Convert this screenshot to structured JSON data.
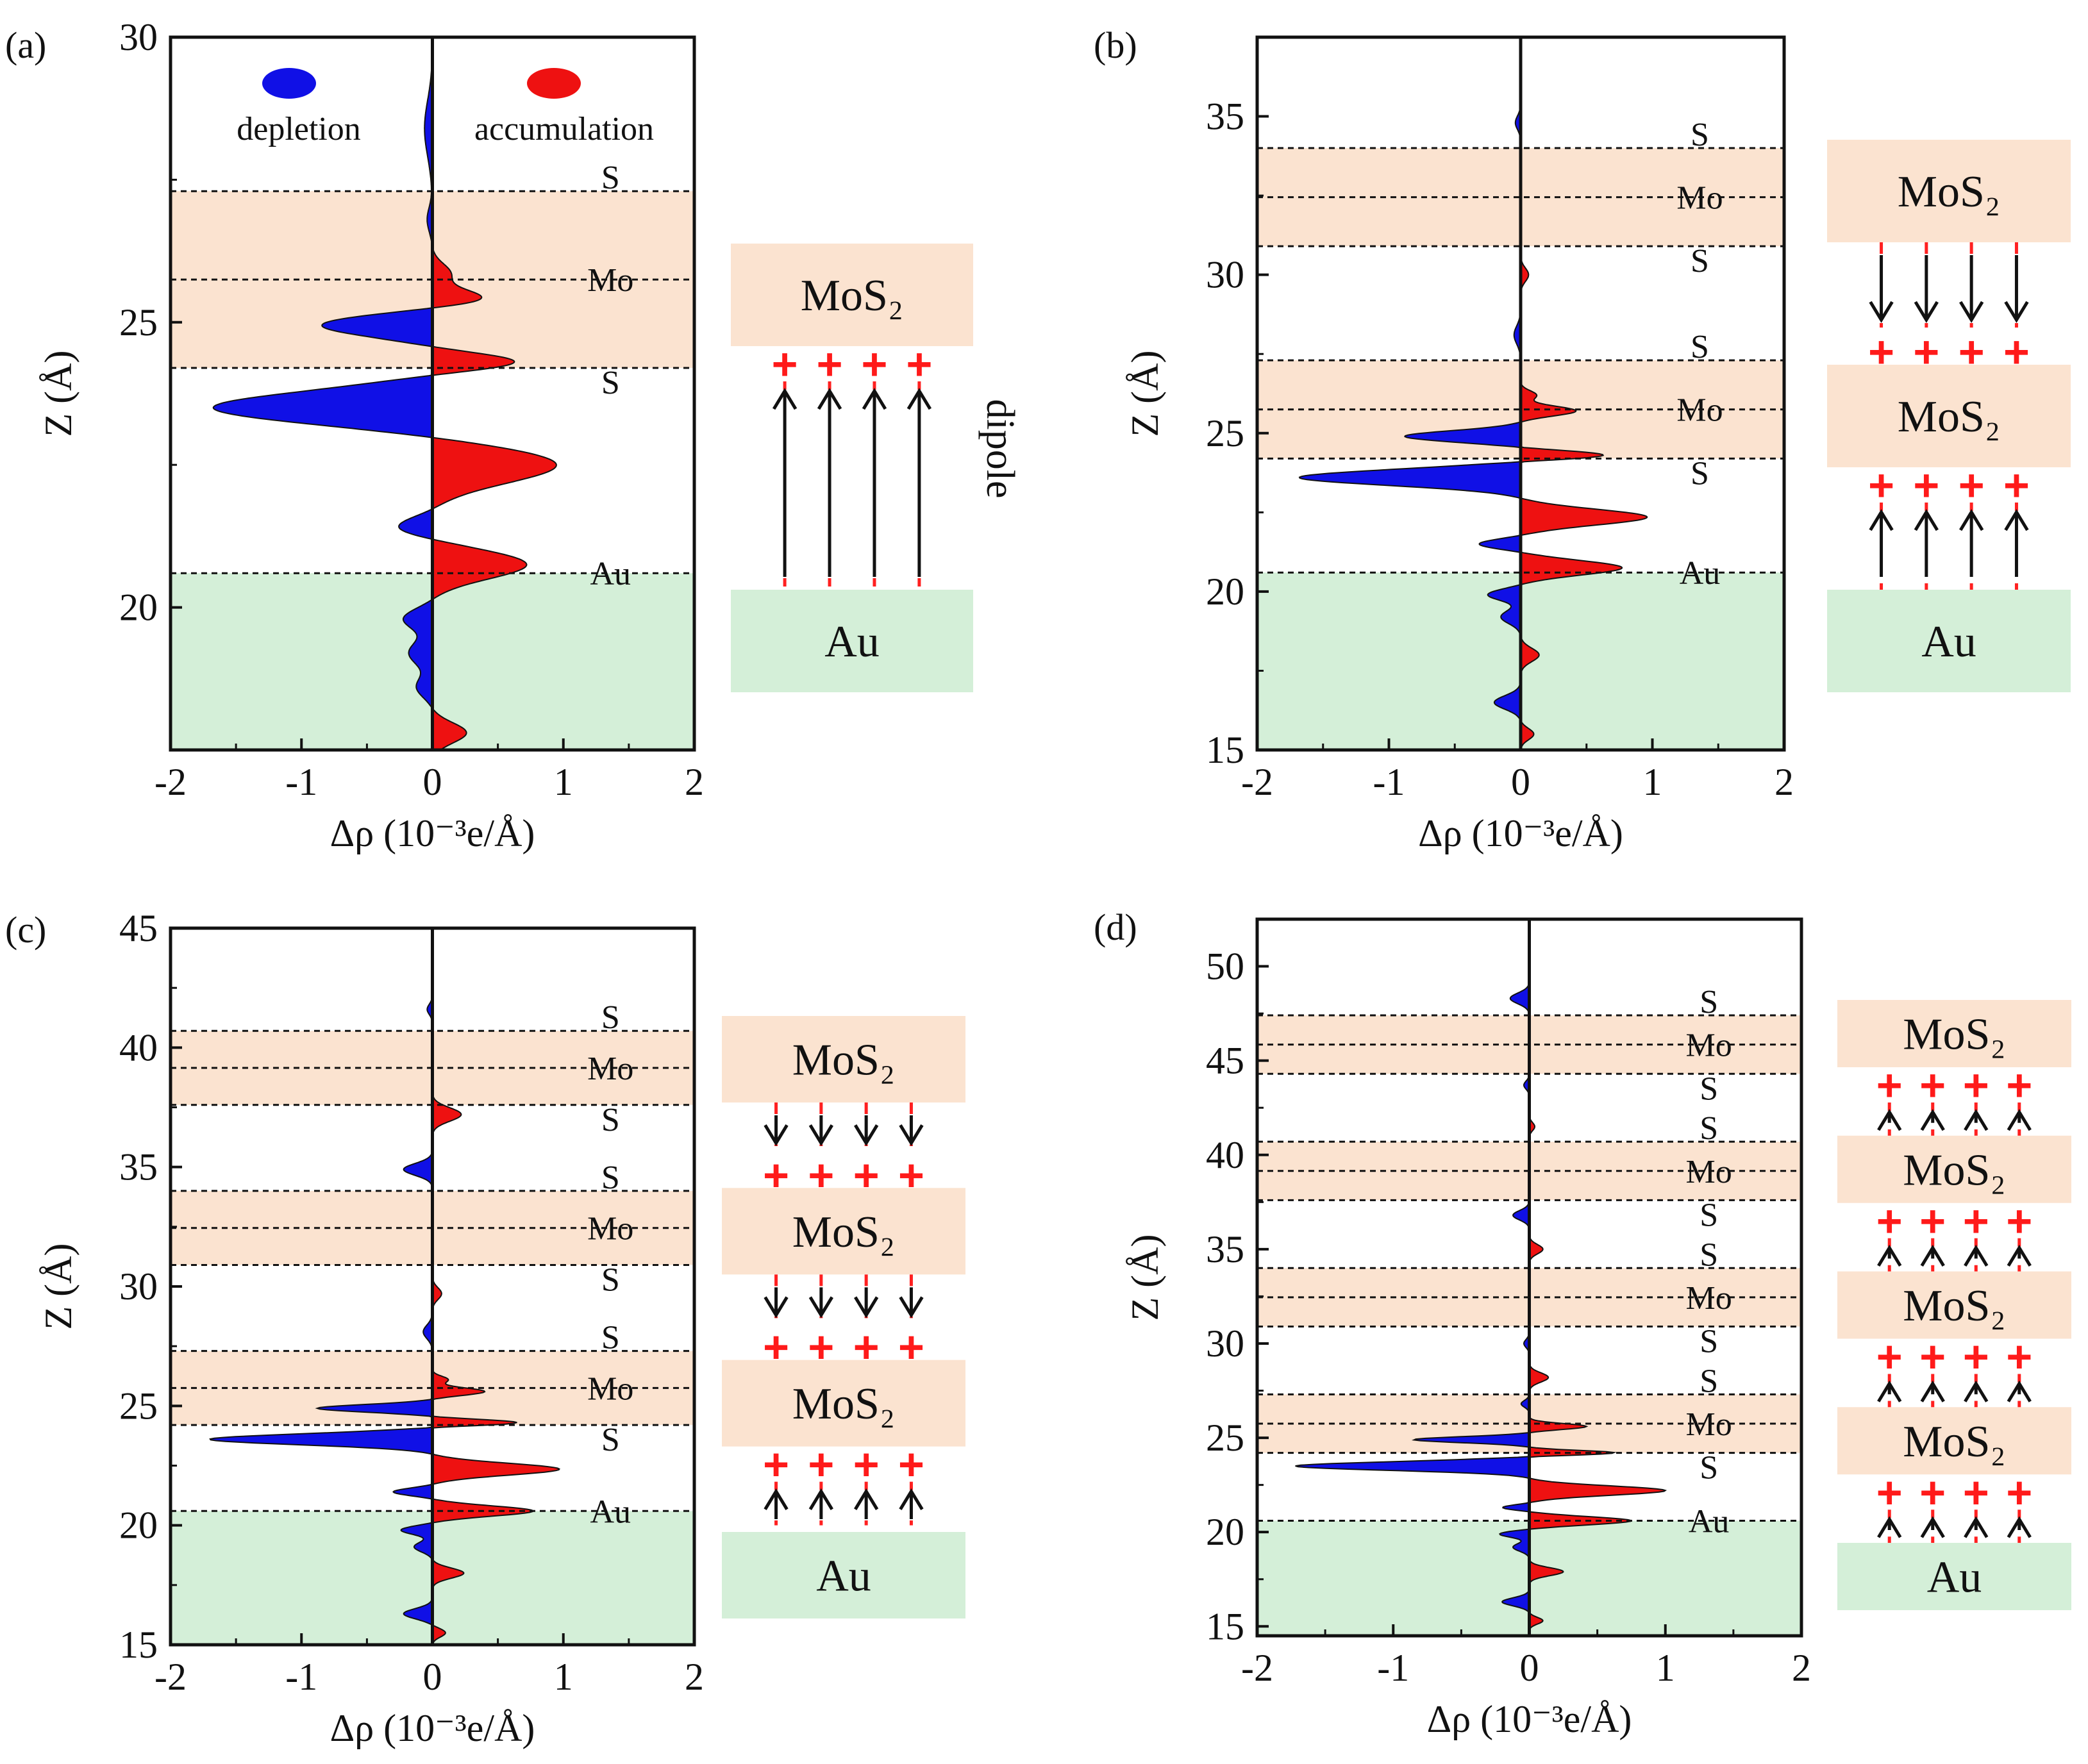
{
  "colors": {
    "depletion": "#1010e6",
    "accumulation": "#ee1111",
    "mos2_band": "#fbe3d0",
    "au_band": "#d4efd8",
    "dipole_dash": "#ff2020"
  },
  "legend": {
    "depletion": "depletion",
    "accumulation": "accumulation"
  },
  "dipole_label": "dipole",
  "box_labels": {
    "mos2": "MoS₂",
    "au": "Au"
  },
  "chart_data": [
    {
      "type": "area",
      "panel_label": "(a)",
      "xlabel": "Δρ (10⁻³e/Å)",
      "ylabel": "Z (Å)",
      "xlim": [
        -2,
        2
      ],
      "ylim": [
        17.5,
        30
      ],
      "xticks": [
        -2,
        -1,
        0,
        1,
        2
      ],
      "yticks": [
        20,
        25,
        30
      ],
      "ytick_labels": [
        "20",
        "25",
        "30"
      ],
      "bands": [
        {
          "type": "mos2",
          "z0": 24.2,
          "z1": 27.3
        }
      ],
      "au_top": 20.6,
      "dashed_lines": [
        {
          "z": 27.3,
          "label": "S"
        },
        {
          "z": 25.75,
          "label": "Mo"
        },
        {
          "z": 24.2,
          "label": "S"
        },
        {
          "z": 20.6,
          "label": "Au"
        }
      ],
      "peaks": [
        [
          28.4,
          -0.06,
          0.7
        ],
        [
          26.8,
          -0.04,
          0.3
        ],
        [
          25.85,
          0.14,
          0.25
        ],
        [
          25.4,
          0.42,
          0.22
        ],
        [
          24.95,
          -0.85,
          0.28
        ],
        [
          24.3,
          0.66,
          0.22
        ],
        [
          23.5,
          -1.68,
          0.4
        ],
        [
          22.5,
          0.95,
          0.45
        ],
        [
          21.4,
          -0.28,
          0.25
        ],
        [
          20.75,
          0.72,
          0.35
        ],
        [
          19.8,
          -0.22,
          0.25
        ],
        [
          19.2,
          -0.18,
          0.3
        ],
        [
          18.6,
          -0.12,
          0.25
        ],
        [
          17.8,
          0.26,
          0.25
        ]
      ],
      "schematic": {
        "boxes": [
          "mos2",
          "au"
        ],
        "gaps": [
          {
            "dir": "up",
            "dipole": true
          }
        ]
      }
    },
    {
      "type": "area",
      "panel_label": "(b)",
      "xlabel": "Δρ (10⁻³e/Å)",
      "ylabel": "Z (Å)",
      "xlim": [
        -2,
        2
      ],
      "ylim": [
        15,
        37.5
      ],
      "xticks": [
        -2,
        -1,
        0,
        1,
        2
      ],
      "yticks": [
        15,
        20,
        25,
        30,
        35
      ],
      "ytick_labels": [
        "15",
        "20",
        "25",
        "30",
        "35"
      ],
      "bands": [
        {
          "type": "mos2",
          "z0": 30.9,
          "z1": 34.0
        },
        {
          "type": "mos2",
          "z0": 24.2,
          "z1": 27.3
        }
      ],
      "au_top": 20.6,
      "dashed_lines": [
        {
          "z": 34.0,
          "label": "S"
        },
        {
          "z": 32.45,
          "label": "Mo"
        },
        {
          "z": 30.9,
          "label": "S"
        },
        {
          "z": 27.3,
          "label": "S"
        },
        {
          "z": 25.75,
          "label": "Mo"
        },
        {
          "z": 24.2,
          "label": "S"
        },
        {
          "z": 20.6,
          "label": "Au"
        }
      ],
      "peaks": [
        [
          34.8,
          -0.04,
          0.3
        ],
        [
          30.0,
          0.06,
          0.3
        ],
        [
          28.1,
          -0.05,
          0.4
        ],
        [
          26.2,
          0.12,
          0.2
        ],
        [
          25.7,
          0.42,
          0.22
        ],
        [
          24.9,
          -0.88,
          0.25
        ],
        [
          24.3,
          0.66,
          0.2
        ],
        [
          23.6,
          -1.68,
          0.35
        ],
        [
          22.35,
          0.96,
          0.35
        ],
        [
          21.5,
          -0.32,
          0.22
        ],
        [
          20.75,
          0.77,
          0.32
        ],
        [
          19.9,
          -0.25,
          0.25
        ],
        [
          19.2,
          -0.15,
          0.3
        ],
        [
          18.0,
          0.14,
          0.3
        ],
        [
          16.5,
          -0.2,
          0.3
        ],
        [
          15.5,
          0.1,
          0.25
        ]
      ],
      "schematic": {
        "boxes": [
          "mos2",
          "mos2",
          "au"
        ],
        "gaps": [
          {
            "dir": "down",
            "dipole": false
          },
          {
            "dir": "up",
            "dipole": false
          }
        ]
      }
    },
    {
      "type": "area",
      "panel_label": "(c)",
      "xlabel": "Δρ (10⁻³e/Å)",
      "ylabel": "Z (Å)",
      "xlim": [
        -2,
        2
      ],
      "ylim": [
        15,
        45
      ],
      "xticks": [
        -2,
        -1,
        0,
        1,
        2
      ],
      "yticks": [
        15,
        20,
        25,
        30,
        35,
        40,
        45
      ],
      "ytick_labels": [
        "15",
        "20",
        "25",
        "30",
        "35",
        "40",
        "45"
      ],
      "bands": [
        {
          "type": "mos2",
          "z0": 37.6,
          "z1": 40.7
        },
        {
          "type": "mos2",
          "z0": 30.9,
          "z1": 34.0
        },
        {
          "type": "mos2",
          "z0": 24.2,
          "z1": 27.3
        }
      ],
      "au_top": 20.6,
      "dashed_lines": [
        {
          "z": 40.7,
          "label": "S"
        },
        {
          "z": 39.15,
          "label": "Mo"
        },
        {
          "z": 37.6,
          "label": "S"
        },
        {
          "z": 34.0,
          "label": "S"
        },
        {
          "z": 32.45,
          "label": "Mo"
        },
        {
          "z": 30.9,
          "label": "S"
        },
        {
          "z": 27.3,
          "label": "S"
        },
        {
          "z": 25.75,
          "label": "Mo"
        },
        {
          "z": 24.2,
          "label": "S"
        },
        {
          "z": 20.6,
          "label": "Au"
        }
      ],
      "peaks": [
        [
          41.6,
          -0.04,
          0.3
        ],
        [
          37.2,
          0.22,
          0.4
        ],
        [
          34.9,
          -0.22,
          0.35
        ],
        [
          29.7,
          0.07,
          0.35
        ],
        [
          28.1,
          -0.07,
          0.4
        ],
        [
          26.1,
          0.12,
          0.2
        ],
        [
          25.6,
          0.4,
          0.22
        ],
        [
          24.9,
          -0.88,
          0.22
        ],
        [
          24.3,
          0.66,
          0.18
        ],
        [
          23.6,
          -1.7,
          0.32
        ],
        [
          22.35,
          0.97,
          0.35
        ],
        [
          21.4,
          -0.3,
          0.22
        ],
        [
          20.6,
          0.77,
          0.3
        ],
        [
          19.8,
          -0.24,
          0.25
        ],
        [
          19.1,
          -0.14,
          0.3
        ],
        [
          18.0,
          0.24,
          0.3
        ],
        [
          16.3,
          -0.22,
          0.3
        ],
        [
          15.5,
          0.1,
          0.25
        ]
      ],
      "schematic": {
        "boxes": [
          "mos2",
          "mos2",
          "mos2",
          "au"
        ],
        "gaps": [
          {
            "dir": "down",
            "dipole": false
          },
          {
            "dir": "down",
            "dipole": false
          },
          {
            "dir": "up",
            "dipole": false
          }
        ]
      }
    },
    {
      "type": "area",
      "panel_label": "(d)",
      "xlabel": "Δρ (10⁻³e/Å)",
      "ylabel": "Z (Å)",
      "xlim": [
        -2,
        2
      ],
      "ylim": [
        14.5,
        52.5
      ],
      "xticks": [
        -2,
        -1,
        0,
        1,
        2
      ],
      "yticks": [
        15,
        20,
        25,
        30,
        35,
        40,
        45,
        50
      ],
      "ytick_labels": [
        "15",
        "20",
        "25",
        "30",
        "35",
        "40",
        "45",
        "50"
      ],
      "bands": [
        {
          "type": "mos2",
          "z0": 44.3,
          "z1": 47.4
        },
        {
          "type": "mos2",
          "z0": 37.6,
          "z1": 40.7
        },
        {
          "type": "mos2",
          "z0": 30.9,
          "z1": 34.0
        },
        {
          "type": "mos2",
          "z0": 24.2,
          "z1": 27.3
        }
      ],
      "au_top": 20.6,
      "dashed_lines": [
        {
          "z": 47.4,
          "label": "S"
        },
        {
          "z": 45.85,
          "label": "Mo"
        },
        {
          "z": 44.3,
          "label": "S"
        },
        {
          "z": 40.7,
          "label": "S"
        },
        {
          "z": 39.15,
          "label": "Mo"
        },
        {
          "z": 37.6,
          "label": "S"
        },
        {
          "z": 34.0,
          "label": "S"
        },
        {
          "z": 32.45,
          "label": "Mo"
        },
        {
          "z": 30.9,
          "label": "S"
        },
        {
          "z": 27.3,
          "label": "S"
        },
        {
          "z": 25.75,
          "label": "Mo"
        },
        {
          "z": 24.2,
          "label": "S"
        },
        {
          "z": 20.6,
          "label": "Au"
        }
      ],
      "peaks": [
        [
          48.3,
          -0.14,
          0.4
        ],
        [
          43.7,
          -0.04,
          0.3
        ],
        [
          41.5,
          0.04,
          0.3
        ],
        [
          36.8,
          -0.12,
          0.35
        ],
        [
          35.0,
          0.1,
          0.35
        ],
        [
          30.0,
          -0.04,
          0.3
        ],
        [
          28.2,
          0.14,
          0.35
        ],
        [
          26.8,
          -0.06,
          0.25
        ],
        [
          25.6,
          0.42,
          0.22
        ],
        [
          24.9,
          -0.85,
          0.22
        ],
        [
          24.2,
          0.64,
          0.18
        ],
        [
          23.5,
          -1.72,
          0.32
        ],
        [
          22.2,
          1.0,
          0.35
        ],
        [
          21.3,
          -0.2,
          0.2
        ],
        [
          20.6,
          0.75,
          0.3
        ],
        [
          19.9,
          -0.22,
          0.25
        ],
        [
          19.2,
          -0.12,
          0.3
        ],
        [
          17.9,
          0.25,
          0.3
        ],
        [
          16.3,
          -0.2,
          0.3
        ],
        [
          15.3,
          0.1,
          0.25
        ]
      ],
      "schematic": {
        "boxes": [
          "mos2",
          "mos2",
          "mos2",
          "mos2",
          "au"
        ],
        "gaps": [
          {
            "dir": "up",
            "dipole": false
          },
          {
            "dir": "up",
            "dipole": false
          },
          {
            "dir": "up",
            "dipole": false
          },
          {
            "dir": "up",
            "dipole": false
          }
        ]
      }
    }
  ]
}
